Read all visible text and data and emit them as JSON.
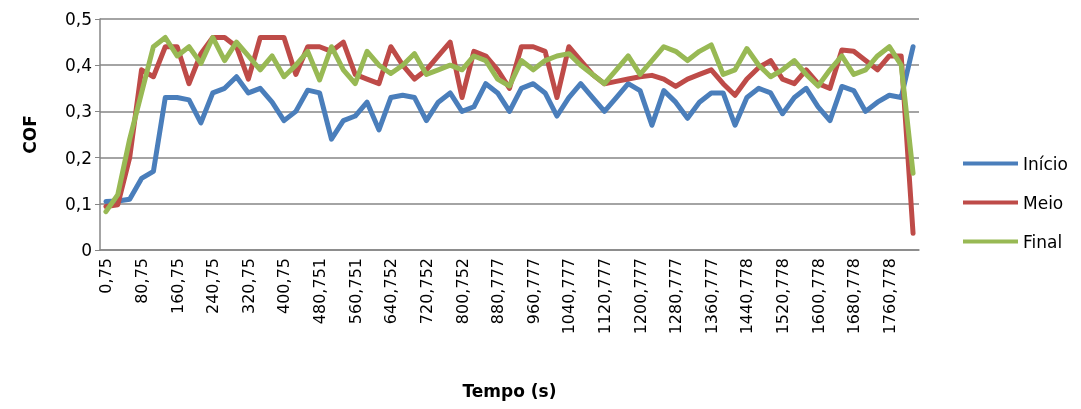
{
  "chart_data": {
    "type": "line",
    "xlabel": "Tempo (s)",
    "ylabel": "COF",
    "categories": [
      "0,75",
      null,
      null,
      "80,75",
      null,
      null,
      "160,75",
      null,
      null,
      "240,75",
      null,
      null,
      "320,75",
      null,
      null,
      "400,75",
      null,
      null,
      "480,751",
      null,
      null,
      "560,751",
      null,
      null,
      "640,752",
      null,
      null,
      "720,752",
      null,
      null,
      "800,752",
      null,
      null,
      "880,777",
      null,
      null,
      "960,777",
      null,
      null,
      "1040,777",
      null,
      null,
      "1120,777",
      null,
      null,
      "1200,777",
      null,
      null,
      "1280,777",
      null,
      null,
      "1360,777",
      null,
      null,
      "1440,778",
      null,
      null,
      "1520,778",
      null,
      null,
      "1600,778",
      null,
      null,
      "1680,778",
      null,
      null,
      "1760,778",
      null,
      null
    ],
    "ylim": [
      0,
      0.5
    ],
    "yticks": [
      0,
      {
        "value": 0.1,
        "label": "0,1"
      },
      {
        "value": 0.2,
        "label": "0,2"
      },
      {
        "value": 0.3,
        "label": "0,3"
      },
      {
        "value": 0.4,
        "label": "0,4"
      },
      {
        "value": 0.5,
        "label": "0,5"
      }
    ],
    "grid": "y",
    "legend": "right",
    "marker": "none",
    "line_style": "solid",
    "series": [
      {
        "name": "Início",
        "color": "#4a7ebb",
        "values": [
          0.105,
          0.106,
          0.11,
          0.155,
          0.17,
          0.33,
          0.33,
          0.325,
          0.275,
          0.34,
          0.35,
          0.375,
          0.34,
          0.35,
          0.32,
          0.28,
          0.3,
          0.346,
          0.34,
          0.24,
          0.28,
          0.29,
          0.32,
          0.26,
          0.33,
          0.335,
          0.33,
          0.28,
          0.32,
          0.34,
          0.3,
          0.31,
          0.36,
          0.34,
          0.3,
          0.35,
          0.36,
          0.34,
          0.29,
          0.33,
          0.36,
          0.33,
          0.3,
          0.33,
          0.36,
          0.345,
          0.27,
          0.345,
          0.32,
          0.285,
          0.32,
          0.34,
          0.34,
          0.27,
          0.33,
          0.35,
          0.34,
          0.295,
          0.33,
          0.35,
          0.31,
          0.28,
          0.354,
          0.345,
          0.3,
          0.32,
          0.335,
          0.33,
          0.44
        ]
      },
      {
        "name": "Meio",
        "color": "#be4b48",
        "values": [
          0.094,
          0.098,
          0.2,
          0.39,
          0.375,
          0.44,
          0.44,
          0.36,
          0.425,
          0.46,
          0.46,
          0.44,
          0.37,
          0.46,
          0.46,
          0.46,
          0.38,
          0.44,
          0.44,
          0.43,
          0.45,
          0.38,
          0.37,
          0.36,
          0.44,
          0.4,
          0.37,
          0.39,
          0.42,
          0.45,
          0.33,
          0.43,
          0.42,
          0.39,
          0.35,
          0.44,
          0.44,
          0.43,
          0.33,
          0.44,
          0.41,
          0.38,
          0.36,
          0.365,
          0.37,
          0.375,
          0.378,
          0.37,
          0.354,
          0.37,
          0.38,
          0.39,
          0.36,
          0.335,
          0.37,
          0.395,
          0.41,
          0.37,
          0.36,
          0.39,
          0.36,
          0.35,
          0.433,
          0.43,
          0.41,
          0.39,
          0.42,
          0.42,
          0.036
        ]
      },
      {
        "name": "Final",
        "color": "#98b954",
        "values": [
          0.083,
          0.12,
          0.24,
          0.34,
          0.44,
          0.46,
          0.42,
          0.44,
          0.404,
          0.46,
          0.41,
          0.45,
          0.42,
          0.39,
          0.42,
          0.375,
          0.4,
          0.43,
          0.368,
          0.44,
          0.39,
          0.36,
          0.43,
          0.4,
          0.382,
          0.4,
          0.425,
          0.38,
          0.39,
          0.4,
          0.39,
          0.42,
          0.41,
          0.37,
          0.355,
          0.41,
          0.39,
          0.41,
          0.42,
          0.425,
          0.4,
          0.38,
          0.36,
          0.39,
          0.42,
          0.38,
          0.41,
          0.44,
          0.43,
          0.41,
          0.43,
          0.444,
          0.38,
          0.39,
          0.436,
          0.4,
          0.375,
          0.39,
          0.41,
          0.38,
          0.355,
          0.39,
          0.42,
          0.38,
          0.39,
          0.42,
          0.44,
          0.4,
          0.166
        ]
      }
    ]
  }
}
